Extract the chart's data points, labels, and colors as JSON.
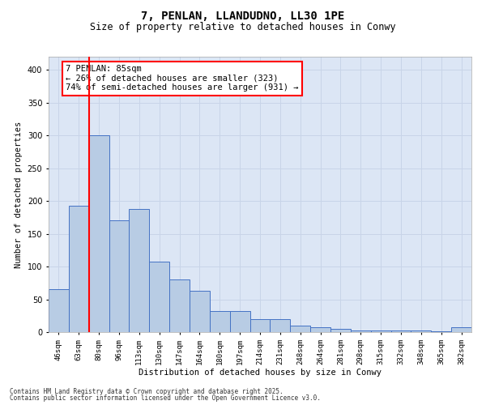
{
  "title1": "7, PENLAN, LLANDUDNO, LL30 1PE",
  "title2": "Size of property relative to detached houses in Conwy",
  "xlabel": "Distribution of detached houses by size in Conwy",
  "ylabel": "Number of detached properties",
  "categories": [
    "46sqm",
    "63sqm",
    "80sqm",
    "96sqm",
    "113sqm",
    "130sqm",
    "147sqm",
    "164sqm",
    "180sqm",
    "197sqm",
    "214sqm",
    "231sqm",
    "248sqm",
    "264sqm",
    "281sqm",
    "298sqm",
    "315sqm",
    "332sqm",
    "348sqm",
    "365sqm",
    "382sqm"
  ],
  "values": [
    65,
    193,
    300,
    170,
    188,
    108,
    80,
    63,
    32,
    32,
    20,
    20,
    10,
    7,
    5,
    3,
    3,
    3,
    3,
    1,
    7
  ],
  "bar_color": "#b8cce4",
  "bar_edge_color": "#4472c4",
  "vline_index": 2,
  "vline_color": "red",
  "annotation_line1": "7 PENLAN: 85sqm",
  "annotation_line2": "← 26% of detached houses are smaller (323)",
  "annotation_line3": "74% of semi-detached houses are larger (931) →",
  "annotation_fontsize": 7.5,
  "grid_color": "#c8d4e8",
  "background_color": "#dce6f5",
  "ylim": [
    0,
    420
  ],
  "yticks": [
    0,
    50,
    100,
    150,
    200,
    250,
    300,
    350,
    400
  ],
  "footer1": "Contains HM Land Registry data © Crown copyright and database right 2025.",
  "footer2": "Contains public sector information licensed under the Open Government Licence v3.0."
}
